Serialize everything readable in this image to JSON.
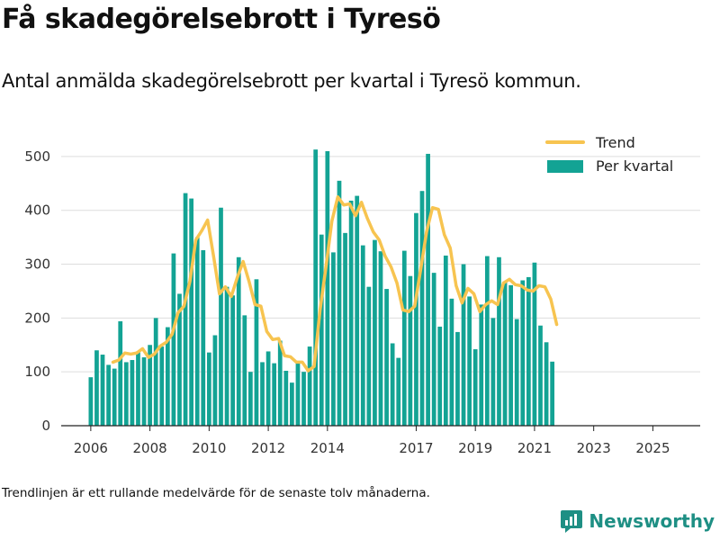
{
  "header": {
    "title": "Få skadegörelsebrott i Tyresö",
    "subtitle": "Antal anmälda skadegörelsebrott per kvartal i Tyresö kommun."
  },
  "footer": {
    "note": "Trendlinjen är ett rullande medelvärde för de senaste tolv månaderna.",
    "brand": "Newsworthy"
  },
  "colors": {
    "bar": "#13a394",
    "trend": "#f7c450",
    "grid": "#dddddd",
    "brand": "#1e8f84"
  },
  "chart_data": {
    "type": "bar",
    "title": "Få skadegörelsebrott i Tyresö",
    "xlabel": "",
    "ylabel": "",
    "ylim": [
      0,
      540
    ],
    "xlim": [
      2005.0,
      2026.6
    ],
    "yticks": [
      0,
      100,
      200,
      300,
      400,
      500
    ],
    "ytick_labels": [
      "0",
      "100",
      "200",
      "300",
      "400",
      "500"
    ],
    "xticks": [
      2006,
      2008,
      2010,
      2012,
      2014,
      2017,
      2019,
      2021,
      2023,
      2025
    ],
    "xtick_positions": [
      2006,
      2008,
      2010,
      2012,
      2014,
      2017,
      2019,
      2021,
      2023,
      2025
    ],
    "xtick_labels": [
      "2006",
      "2008",
      "2010",
      "2012",
      "2014",
      "2017",
      "2019",
      "2021",
      "2023",
      "2025"
    ],
    "legend": {
      "position": "top-right",
      "entries": [
        "Trend",
        "Per kvartal"
      ]
    },
    "series": [
      {
        "name": "Per kvartal",
        "type": "bar",
        "x_start": 2006.0,
        "step": 0.2,
        "values": [
          90,
          140,
          132,
          113,
          106,
          194,
          118,
          122,
          138,
          127,
          150,
          200,
          147,
          183,
          320,
          245,
          432,
          422,
          350,
          326,
          136,
          168,
          405,
          258,
          242,
          313,
          205,
          100,
          272,
          118,
          138,
          116,
          158,
          102,
          80,
          120,
          100,
          147,
          513,
          355,
          510,
          322,
          455,
          358,
          418,
          427,
          335,
          258,
          345,
          324,
          254,
          153,
          126,
          325,
          278,
          395,
          436,
          505,
          284,
          184,
          316,
          236,
          174,
          300,
          240,
          142,
          225,
          315,
          200,
          313,
          268,
          261,
          198,
          270,
          276,
          303,
          186,
          155,
          119
        ]
      },
      {
        "name": "Trend",
        "type": "line",
        "points": [
          [
            2006.75,
            118
          ],
          [
            2006.95,
            122
          ],
          [
            2007.15,
            135
          ],
          [
            2007.35,
            133
          ],
          [
            2007.55,
            135
          ],
          [
            2007.75,
            143
          ],
          [
            2007.95,
            127
          ],
          [
            2008.15,
            133
          ],
          [
            2008.35,
            148
          ],
          [
            2008.55,
            155
          ],
          [
            2008.75,
            170
          ],
          [
            2008.95,
            210
          ],
          [
            2009.15,
            222
          ],
          [
            2009.35,
            268
          ],
          [
            2009.55,
            345
          ],
          [
            2009.75,
            362
          ],
          [
            2009.95,
            382
          ],
          [
            2010.15,
            315
          ],
          [
            2010.35,
            245
          ],
          [
            2010.55,
            258
          ],
          [
            2010.75,
            240
          ],
          [
            2010.95,
            275
          ],
          [
            2011.15,
            305
          ],
          [
            2011.35,
            268
          ],
          [
            2011.55,
            225
          ],
          [
            2011.75,
            222
          ],
          [
            2011.95,
            175
          ],
          [
            2012.15,
            160
          ],
          [
            2012.35,
            162
          ],
          [
            2012.55,
            130
          ],
          [
            2012.75,
            128
          ],
          [
            2012.95,
            118
          ],
          [
            2013.15,
            118
          ],
          [
            2013.35,
            102
          ],
          [
            2013.55,
            110
          ],
          [
            2013.75,
            215
          ],
          [
            2013.95,
            295
          ],
          [
            2014.15,
            380
          ],
          [
            2014.35,
            425
          ],
          [
            2014.55,
            410
          ],
          [
            2014.75,
            412
          ],
          [
            2014.95,
            390
          ],
          [
            2015.15,
            415
          ],
          [
            2015.35,
            385
          ],
          [
            2015.55,
            360
          ],
          [
            2015.75,
            345
          ],
          [
            2015.95,
            315
          ],
          [
            2016.15,
            295
          ],
          [
            2016.35,
            265
          ],
          [
            2016.55,
            215
          ],
          [
            2016.75,
            212
          ],
          [
            2016.95,
            222
          ],
          [
            2017.15,
            290
          ],
          [
            2017.35,
            360
          ],
          [
            2017.55,
            405
          ],
          [
            2017.75,
            402
          ],
          [
            2017.95,
            355
          ],
          [
            2018.15,
            330
          ],
          [
            2018.35,
            260
          ],
          [
            2018.55,
            228
          ],
          [
            2018.75,
            255
          ],
          [
            2018.95,
            245
          ],
          [
            2019.15,
            212
          ],
          [
            2019.35,
            225
          ],
          [
            2019.55,
            232
          ],
          [
            2019.75,
            225
          ],
          [
            2019.95,
            265
          ],
          [
            2020.15,
            272
          ],
          [
            2020.35,
            262
          ],
          [
            2020.55,
            260
          ],
          [
            2020.75,
            252
          ],
          [
            2020.95,
            250
          ],
          [
            2021.15,
            260
          ],
          [
            2021.35,
            258
          ],
          [
            2021.55,
            235
          ],
          [
            2021.75,
            188
          ]
        ]
      }
    ]
  }
}
